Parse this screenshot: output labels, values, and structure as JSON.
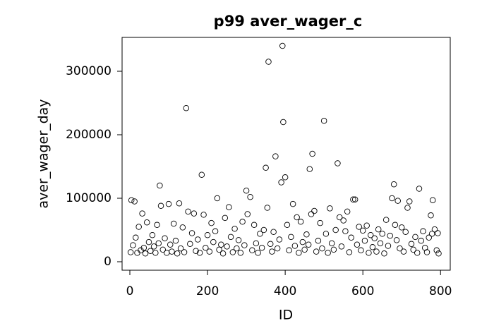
{
  "chart_data": {
    "type": "scatter",
    "title": "p99 aver_wager_c",
    "xlabel": "ID",
    "ylabel": "aver_wager_day",
    "x": [
      2,
      4,
      8,
      12,
      15,
      19,
      23,
      28,
      32,
      36,
      40,
      44,
      49,
      53,
      58,
      62,
      66,
      70,
      74,
      77,
      80,
      85,
      90,
      95,
      100,
      104,
      108,
      113,
      118,
      122,
      127,
      131,
      136,
      140,
      145,
      150,
      155,
      160,
      165,
      170,
      175,
      180,
      185,
      190,
      195,
      200,
      205,
      210,
      215,
      220,
      225,
      230,
      235,
      240,
      245,
      250,
      255,
      260,
      265,
      270,
      275,
      280,
      285,
      290,
      295,
      300,
      303,
      310,
      315,
      320,
      325,
      330,
      335,
      340,
      345,
      350,
      354,
      357,
      362,
      366,
      370,
      375,
      380,
      385,
      390,
      393,
      395,
      400,
      405,
      410,
      415,
      420,
      425,
      430,
      435,
      440,
      445,
      450,
      455,
      460,
      463,
      467,
      470,
      475,
      480,
      485,
      490,
      495,
      500,
      505,
      510,
      515,
      520,
      525,
      530,
      535,
      540,
      545,
      550,
      555,
      560,
      565,
      570,
      575,
      580,
      585,
      590,
      595,
      600,
      605,
      610,
      615,
      620,
      625,
      630,
      635,
      640,
      645,
      650,
      655,
      660,
      665,
      670,
      675,
      680,
      683,
      687,
      690,
      695,
      700,
      705,
      710,
      715,
      720,
      725,
      730,
      735,
      740,
      745,
      750,
      755,
      760,
      765,
      770,
      775,
      778,
      780,
      785,
      790,
      793,
      795
    ],
    "values": [
      15000,
      97000,
      26000,
      95000,
      38000,
      14000,
      55000,
      18000,
      76000,
      22000,
      13000,
      62000,
      31000,
      17000,
      42000,
      24000,
      14000,
      58000,
      29000,
      120000,
      88000,
      19000,
      37000,
      14000,
      91000,
      27000,
      16000,
      60000,
      33000,
      13000,
      92000,
      21000,
      54000,
      15000,
      242000,
      79000,
      28000,
      45000,
      76000,
      17000,
      35000,
      14000,
      137000,
      74000,
      22000,
      42000,
      16000,
      61000,
      31000,
      48000,
      100000,
      19000,
      27000,
      13000,
      69000,
      24000,
      86000,
      39000,
      15000,
      52000,
      21000,
      34000,
      14000,
      63000,
      26000,
      112000,
      75000,
      102000,
      18000,
      58000,
      29000,
      14000,
      44000,
      22000,
      50000,
      148000,
      85000,
      315000,
      28000,
      16000,
      47000,
      166000,
      21000,
      35000,
      125000,
      340000,
      220000,
      133000,
      58000,
      18000,
      39000,
      91000,
      25000,
      70000,
      14000,
      63000,
      31000,
      19000,
      43000,
      27000,
      146000,
      75000,
      170000,
      80000,
      16000,
      33000,
      61000,
      21000,
      222000,
      44000,
      14000,
      84000,
      29000,
      19000,
      50000,
      155000,
      70000,
      24000,
      65000,
      48000,
      79000,
      15000,
      38000,
      98000,
      98000,
      27000,
      55000,
      18000,
      49000,
      33000,
      57000,
      14000,
      42000,
      23000,
      37000,
      16000,
      51000,
      29000,
      44000,
      13000,
      66000,
      25000,
      41000,
      100000,
      122000,
      58000,
      34000,
      96000,
      21000,
      54000,
      16000,
      47000,
      85000,
      95000,
      28000,
      19000,
      39000,
      14000,
      115000,
      33000,
      48000,
      22000,
      15000,
      38000,
      73000,
      44000,
      97000,
      51000,
      18000,
      45000,
      13000
    ],
    "xlim": [
      -20,
      825
    ],
    "ylim": [
      -13333,
      353333
    ],
    "xticks": [
      0,
      200,
      400,
      600,
      800
    ],
    "yticks": [
      0,
      100000,
      200000,
      300000
    ],
    "color": "#000000",
    "grid": false
  }
}
